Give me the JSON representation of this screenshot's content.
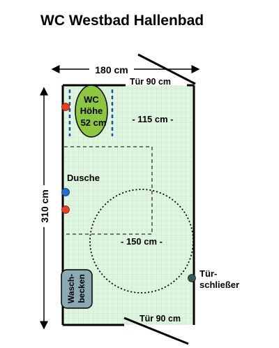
{
  "title": "WC Westbad Hallenbad",
  "width_dimension": "180 cm",
  "depth_dimension": "310 cm",
  "door_top": "Tür 90 cm",
  "door_bottom": "Tür 90 cm",
  "wc": {
    "line1": "WC",
    "line2": "Höhe",
    "line3": "52 cm",
    "color": "#8dc63f"
  },
  "clearance_wc": "- 115 cm -",
  "shower_label": "Dusche",
  "turning_circle": "- 150 cm -",
  "door_closer": {
    "line1": "Tür-",
    "line2": "schließer"
  },
  "washbasin": {
    "line1": "Wasch-",
    "line2": "becken"
  },
  "colors": {
    "floor": "#dff5df",
    "grid": "#b6e0b6",
    "wall": "#000000",
    "grab_bar": "#1f4aa8",
    "hot_tap": "#e8401f",
    "cold_tap": "#1e6fd0",
    "closer_knob": "#2f5a55",
    "washbasin_fill": "#8aa9b0"
  }
}
